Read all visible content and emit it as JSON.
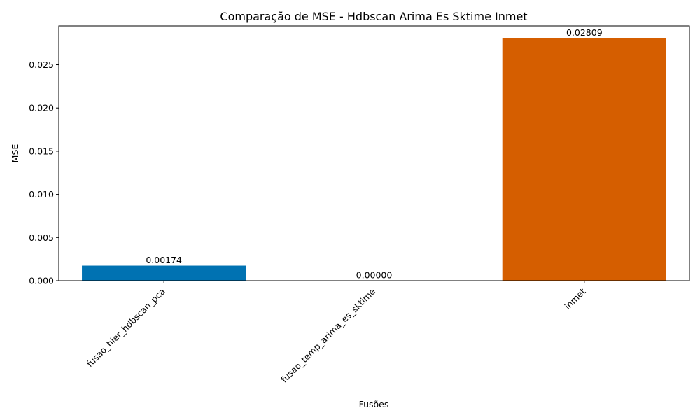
{
  "chart_data": {
    "type": "bar",
    "title": "Comparação de MSE - Hdbscan Arima Es Sktime Inmet",
    "xlabel": "Fusões",
    "ylabel": "MSE",
    "categories": [
      "fusao_hier_hdbscan_pca",
      "fusao_temp_arima_es_sktime",
      "inmet"
    ],
    "values": [
      0.00174,
      0.0,
      0.02809
    ],
    "value_labels": [
      "0.00174",
      "0.00000",
      "0.02809"
    ],
    "colors": [
      "#0072B2",
      "#009E73",
      "#D55E00"
    ],
    "ylim": [
      0,
      0.0295
    ],
    "yticks": [
      0.0,
      0.005,
      0.01,
      0.015,
      0.02,
      0.025
    ],
    "ytick_labels": [
      "0.000",
      "0.005",
      "0.010",
      "0.015",
      "0.020",
      "0.025"
    ],
    "grid": false,
    "legend": "none"
  }
}
